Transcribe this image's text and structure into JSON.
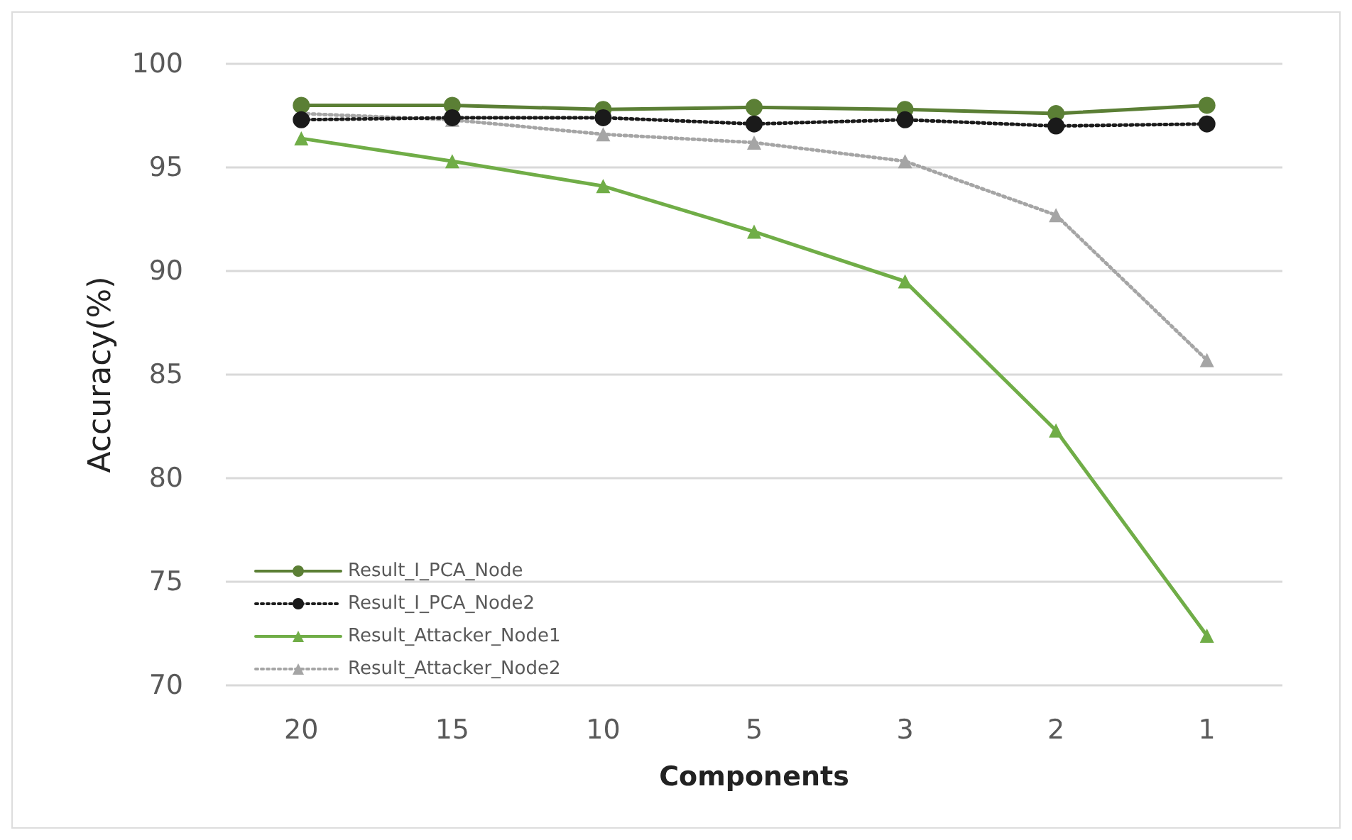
{
  "chart_data": {
    "type": "line",
    "xlabel": "Components",
    "ylabel": "Accuracy(%)",
    "categories": [
      "20",
      "15",
      "10",
      "5",
      "3",
      "2",
      "1"
    ],
    "series": [
      {
        "name": "Result_I_PCA_Node",
        "color": "#5b7f35",
        "marker": "circle",
        "line_style": "solid",
        "values": [
          98.0,
          98.0,
          97.8,
          97.9,
          97.8,
          97.6,
          98.0
        ]
      },
      {
        "name": "Result_I_PCA_Node2",
        "color": "#1a1a1a",
        "marker": "circle",
        "line_style": "dotted",
        "values": [
          97.3,
          97.4,
          97.4,
          97.1,
          97.3,
          97.0,
          97.1
        ]
      },
      {
        "name": "Result_Attacker_Node1",
        "color": "#70ad47",
        "marker": "triangle",
        "line_style": "solid",
        "values": [
          96.4,
          95.3,
          94.1,
          91.9,
          89.5,
          82.3,
          72.4
        ]
      },
      {
        "name": "Result_Attacker_Node2",
        "color": "#a5a5a5",
        "marker": "triangle",
        "line_style": "dotted",
        "values": [
          97.6,
          97.3,
          96.6,
          96.2,
          95.3,
          92.7,
          85.7
        ]
      }
    ],
    "ylim": [
      70,
      100
    ],
    "yticks": [
      70,
      75,
      80,
      85,
      90,
      95,
      100
    ],
    "grid": "y",
    "legend": "bottom left"
  }
}
